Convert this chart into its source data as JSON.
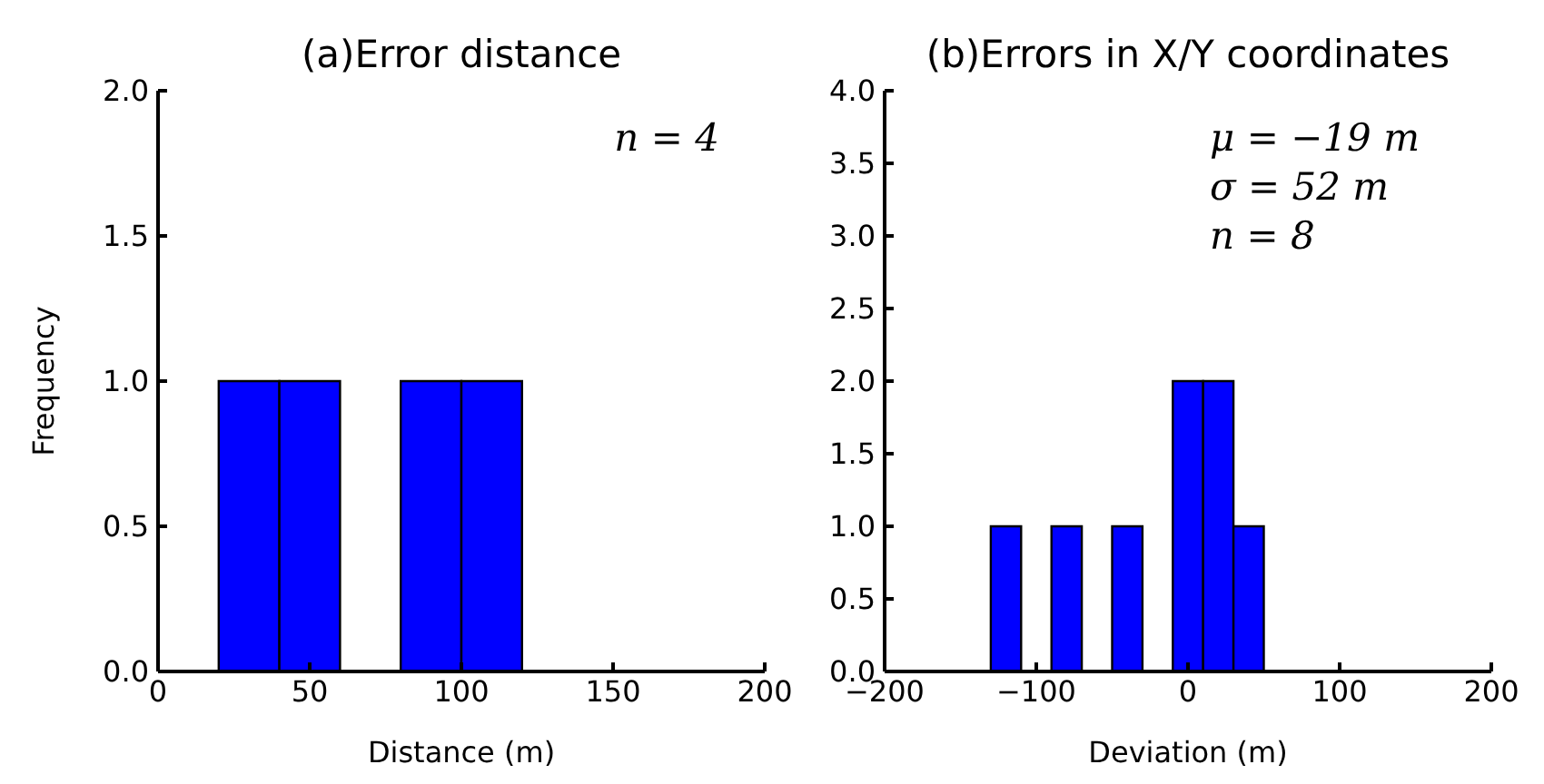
{
  "chart_data": [
    {
      "type": "histogram",
      "title": "(a)Error distance",
      "xlabel": "Distance (m)",
      "ylabel": "Frequency",
      "color": "#0000ff",
      "bins": [
        0,
        20,
        40,
        60,
        80,
        100,
        120,
        140,
        160,
        180,
        200
      ],
      "values": [
        0,
        1,
        1,
        0,
        1,
        1,
        0,
        0,
        0,
        0
      ],
      "xlim": [
        0,
        200
      ],
      "xticks": [
        0,
        50,
        100,
        150,
        200
      ],
      "ylim": [
        0,
        2
      ],
      "yticks": [
        {
          "value": 0,
          "label": "0.0"
        },
        {
          "value": 0.5,
          "label": "0.5"
        },
        {
          "value": 1,
          "label": "1.0"
        },
        {
          "value": 1.5,
          "label": "1.5"
        },
        {
          "value": 2,
          "label": "2.0"
        }
      ],
      "annotations": [
        "n = 4"
      ],
      "grid": false,
      "legend": false
    },
    {
      "type": "histogram",
      "title": "(b)Errors in X/Y coordinates",
      "xlabel": "Deviation (m)",
      "color": "#0000ff",
      "bins": [
        -190,
        -170,
        -150,
        -130,
        -110,
        -90,
        -70,
        -50,
        -30,
        -10,
        10,
        30,
        50,
        70,
        90,
        110,
        130,
        150,
        170,
        190
      ],
      "values": [
        0,
        0,
        0,
        1,
        0,
        1,
        0,
        1,
        0,
        2,
        2,
        1,
        0,
        0,
        0,
        0,
        0,
        0,
        0
      ],
      "xlim": [
        -200,
        200
      ],
      "xticks": [
        {
          "value": -200,
          "label": "−200"
        },
        {
          "value": -100,
          "label": "−100"
        },
        0,
        100,
        200
      ],
      "ylim": [
        0,
        4
      ],
      "yticks": [
        {
          "value": 0,
          "label": "0.0"
        },
        {
          "value": 0.5,
          "label": "0.5"
        },
        {
          "value": 1,
          "label": "1.0"
        },
        {
          "value": 1.5,
          "label": "1.5"
        },
        {
          "value": 2,
          "label": "2.0"
        },
        {
          "value": 2.5,
          "label": "2.5"
        },
        {
          "value": 3,
          "label": "3.0"
        },
        {
          "value": 3.5,
          "label": "3.5"
        },
        {
          "value": 4,
          "label": "4.0"
        }
      ],
      "annotations": [
        "μ = −19 m",
        "σ = 52 m",
        "n = 8"
      ],
      "grid": false,
      "legend": false
    }
  ]
}
